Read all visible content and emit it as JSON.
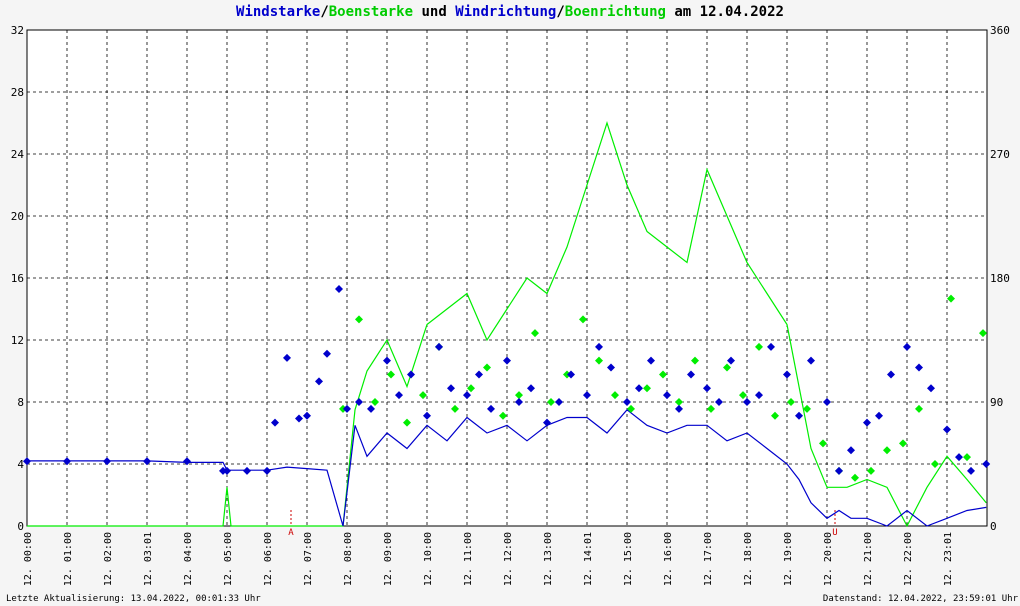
{
  "title": {
    "parts": [
      {
        "text": "Windstarke",
        "color": "#0000cc"
      },
      {
        "text": "/",
        "color": "#000000"
      },
      {
        "text": "Boenstarke",
        "color": "#00cc00"
      },
      {
        "text": " und ",
        "color": "#000000"
      },
      {
        "text": "Windrichtung",
        "color": "#0000cc"
      },
      {
        "text": "/",
        "color": "#000000"
      },
      {
        "text": "Boenrichtung",
        "color": "#00cc00"
      },
      {
        "text": " am 12.04.2022",
        "color": "#000000"
      }
    ]
  },
  "footer": {
    "left": "Letzte Aktualisierung: 13.04.2022, 00:01:33 Uhr",
    "right": "Datenstand: 12.04.2022, 23:59:01 Uhr"
  },
  "colors": {
    "wind": "#0000cc",
    "gust": "#00ee00",
    "marker": "#cc0000",
    "grid": "#000000",
    "plot_bg": "#ffffff"
  },
  "chart_data": {
    "type": "line",
    "left_axis": {
      "min": 0,
      "max": 32,
      "ticks": [
        "0",
        "4",
        "8",
        "12",
        "16",
        "20",
        "24",
        "28",
        "32"
      ]
    },
    "right_axis": {
      "min": 0,
      "max": 360,
      "ticks": [
        "0",
        "90",
        "180",
        "270",
        "360"
      ]
    },
    "x_range_hours": [
      0,
      24
    ],
    "x_ticks": [
      {
        "h": 0,
        "label": "12. 00:00"
      },
      {
        "h": 1,
        "label": "12. 01:00"
      },
      {
        "h": 2,
        "label": "12. 02:00"
      },
      {
        "h": 3,
        "label": "12. 03:01"
      },
      {
        "h": 4,
        "label": "12. 04:00"
      },
      {
        "h": 5,
        "label": "12. 05:00"
      },
      {
        "h": 6,
        "label": "12. 06:00"
      },
      {
        "h": 7,
        "label": "12. 07:00"
      },
      {
        "h": 8,
        "label": "12. 08:00"
      },
      {
        "h": 9,
        "label": "12. 09:00"
      },
      {
        "h": 10,
        "label": "12. 10:00"
      },
      {
        "h": 11,
        "label": "12. 11:00"
      },
      {
        "h": 12,
        "label": "12. 12:00"
      },
      {
        "h": 13,
        "label": "12. 13:00"
      },
      {
        "h": 14,
        "label": "12. 14:01"
      },
      {
        "h": 15,
        "label": "12. 15:00"
      },
      {
        "h": 16,
        "label": "12. 16:00"
      },
      {
        "h": 17,
        "label": "12. 17:00"
      },
      {
        "h": 18,
        "label": "12. 18:00"
      },
      {
        "h": 19,
        "label": "12. 19:00"
      },
      {
        "h": 20,
        "label": "12. 20:00"
      },
      {
        "h": 21,
        "label": "12. 21:00"
      },
      {
        "h": 22,
        "label": "12. 22:00"
      },
      {
        "h": 23,
        "label": "12. 23:01"
      }
    ],
    "markers": [
      {
        "h": 6.6,
        "label": "A"
      },
      {
        "h": 20.2,
        "label": "U"
      }
    ],
    "series": [
      {
        "name": "Windstarke",
        "color": "#0000cc",
        "x": [
          0,
          1,
          2,
          3,
          4,
          4.9,
          5.0,
          5.5,
          6.0,
          6.5,
          7.0,
          7.5,
          7.9,
          8.2,
          8.5,
          9,
          9.5,
          10,
          10.5,
          11,
          11.5,
          12,
          12.5,
          13,
          13.5,
          14,
          14.5,
          15,
          15.5,
          16,
          16.5,
          17,
          17.5,
          18,
          18.5,
          19,
          19.3,
          19.6,
          20,
          20.3,
          20.6,
          21,
          21.5,
          22,
          22.5,
          23,
          23.5,
          23.98
        ],
        "y": [
          4.2,
          4.2,
          4.2,
          4.2,
          4.1,
          4.1,
          3.6,
          3.6,
          3.6,
          3.8,
          3.7,
          3.6,
          0,
          6.5,
          4.5,
          6.0,
          5.0,
          6.5,
          5.5,
          7.0,
          6.0,
          6.5,
          5.5,
          6.5,
          7.0,
          7.0,
          6.0,
          7.5,
          6.5,
          6.0,
          6.5,
          6.5,
          5.5,
          6.0,
          5.0,
          4.0,
          3.0,
          1.5,
          0.5,
          1.0,
          0.5,
          0.5,
          0,
          1.0,
          0,
          0.5,
          1.0,
          1.2
        ]
      },
      {
        "name": "Boenstarke",
        "color": "#00ee00",
        "x": [
          0,
          4.9,
          5.0,
          5.1,
          7.9,
          8.2,
          8.5,
          9,
          9.5,
          10,
          10.5,
          11,
          11.5,
          12,
          12.5,
          13,
          13.5,
          14,
          14.5,
          15,
          15.5,
          16,
          16.5,
          17,
          17.5,
          18,
          18.5,
          19,
          19.3,
          19.6,
          20,
          20.5,
          21,
          21.5,
          22,
          22.5,
          23,
          23.5,
          23.98
        ],
        "y": [
          0,
          0,
          2.5,
          0,
          0,
          7.5,
          10,
          12,
          9,
          13,
          14,
          15,
          12,
          14,
          16,
          15,
          18,
          22,
          26,
          22,
          19,
          18,
          17,
          23,
          20,
          17,
          15,
          13,
          9,
          5,
          2.5,
          2.5,
          3,
          2.5,
          0,
          2.5,
          4.5,
          3,
          1.5
        ]
      },
      {
        "name": "Windrichtung",
        "color": "#0000cc",
        "x": [
          0,
          1,
          2,
          3,
          4,
          4.9,
          5.0,
          5.5,
          6.0,
          6.2,
          6.5,
          6.8,
          7.0,
          7.3,
          7.5,
          7.8,
          8.0,
          8.3,
          8.6,
          9,
          9.3,
          9.6,
          10,
          10.3,
          10.6,
          11,
          11.3,
          11.6,
          12,
          12.3,
          12.6,
          13,
          13.3,
          13.6,
          14,
          14.3,
          14.6,
          15,
          15.3,
          15.6,
          16,
          16.3,
          16.6,
          17,
          17.3,
          17.6,
          18,
          18.3,
          18.6,
          19,
          19.3,
          19.6,
          20,
          20.3,
          20.6,
          21,
          21.3,
          21.6,
          22,
          22.3,
          22.6,
          23,
          23.3,
          23.6,
          23.98
        ],
        "y": [
          47,
          47,
          47,
          47,
          47,
          40,
          40,
          40,
          40,
          75,
          122,
          78,
          80,
          105,
          125,
          172,
          85,
          90,
          85,
          120,
          95,
          110,
          80,
          130,
          100,
          95,
          110,
          85,
          120,
          90,
          100,
          75,
          90,
          110,
          95,
          130,
          115,
          90,
          100,
          120,
          95,
          85,
          110,
          100,
          90,
          120,
          90,
          95,
          130,
          110,
          80,
          120,
          90,
          40,
          55,
          75,
          80,
          110,
          130,
          115,
          100,
          70,
          50,
          40,
          45
        ]
      },
      {
        "name": "Boenrichtung",
        "color": "#00ee00",
        "x": [
          7.9,
          8.3,
          8.7,
          9.1,
          9.5,
          9.9,
          10.3,
          10.7,
          11.1,
          11.5,
          11.9,
          12.3,
          12.7,
          13.1,
          13.5,
          13.9,
          14.3,
          14.7,
          15.1,
          15.5,
          15.9,
          16.3,
          16.7,
          17.1,
          17.5,
          17.9,
          18.3,
          18.7,
          19.1,
          19.5,
          19.9,
          20.3,
          20.7,
          21.1,
          21.5,
          21.9,
          22.3,
          22.7,
          23.1,
          23.5,
          23.9
        ],
        "y": [
          85,
          150,
          90,
          110,
          75,
          95,
          130,
          85,
          100,
          115,
          80,
          95,
          140,
          90,
          110,
          150,
          120,
          95,
          85,
          100,
          110,
          90,
          120,
          85,
          115,
          95,
          130,
          80,
          90,
          85,
          60,
          40,
          35,
          40,
          55,
          60,
          85,
          45,
          165,
          50,
          140
        ]
      }
    ]
  }
}
